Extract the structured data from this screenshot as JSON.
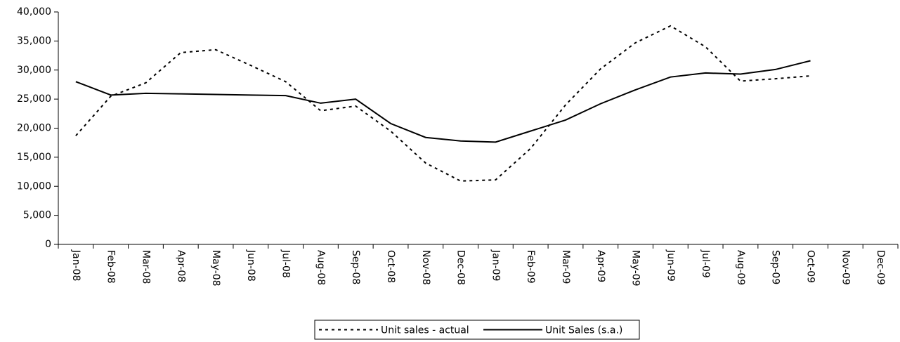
{
  "chart_data": {
    "type": "line",
    "categories": [
      "Jan-08",
      "Feb-08",
      "Mar-08",
      "Apr-08",
      "May-08",
      "Jun-08",
      "Jul-08",
      "Aug-08",
      "Sep-08",
      "Oct-08",
      "Nov-08",
      "Dec-08",
      "Jan-09",
      "Feb-09",
      "Mar-09",
      "Apr-09",
      "May-09",
      "Jun-09",
      "Jul-09",
      "Aug-09",
      "Sep-09",
      "Oct-09",
      "Nov-09",
      "Dec-09"
    ],
    "series": [
      {
        "name": "Unit sales - actual",
        "color": "#000000",
        "style": "dashed",
        "values": [
          18700,
          25500,
          27800,
          33000,
          33500,
          30800,
          28000,
          23000,
          23800,
          19500,
          14000,
          10900,
          11100,
          16500,
          24000,
          30200,
          34700,
          37600,
          34000,
          28100,
          28500,
          29000,
          null,
          null
        ]
      },
      {
        "name": "Unit Sales (s.a.)",
        "color": "#000000",
        "style": "solid",
        "values": [
          28000,
          25700,
          26000,
          25900,
          25800,
          25700,
          25600,
          24300,
          25000,
          20800,
          18400,
          17800,
          17600,
          19500,
          21400,
          24200,
          26600,
          28800,
          29500,
          29300,
          30100,
          31600,
          null,
          null
        ]
      }
    ],
    "ylim": [
      0,
      40000
    ],
    "yticks": [
      {
        "value": 0,
        "label": "0"
      },
      {
        "value": 5000,
        "label": "5,000"
      },
      {
        "value": 10000,
        "label": "10,000"
      },
      {
        "value": 15000,
        "label": "15,000"
      },
      {
        "value": 20000,
        "label": "20,000"
      },
      {
        "value": 25000,
        "label": "25,000"
      },
      {
        "value": 30000,
        "label": "30,000"
      },
      {
        "value": 35000,
        "label": "35,000"
      },
      {
        "value": 40000,
        "label": "40,000"
      }
    ],
    "legend": "bottom"
  }
}
